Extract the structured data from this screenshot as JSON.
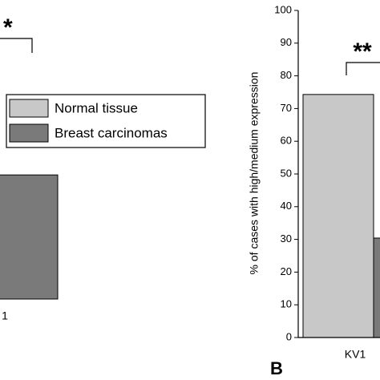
{
  "chart_data": [
    {
      "type": "bar",
      "annotations": [
        "*"
      ],
      "categories": [
        "1"
      ],
      "series": [
        {
          "name": "Normal tissue",
          "color": "#c8c8c8",
          "values": [
            null
          ]
        },
        {
          "name": "Breast carcinomas",
          "color": "#7a7a7a",
          "values": [
            43
          ]
        }
      ],
      "ylim": [
        0,
        100
      ]
    },
    {
      "type": "bar",
      "ylabel": "% of cases with high/medium expression",
      "annotations": [
        "**",
        "B"
      ],
      "categories": [
        "KV1"
      ],
      "series": [
        {
          "name": "Normal tissue",
          "color": "#c8c8c8",
          "values": [
            74.3
          ]
        },
        {
          "name": "Breast carcinomas",
          "color": "#7a7a7a",
          "values": [
            30.4
          ]
        }
      ],
      "ylim": [
        0,
        100
      ],
      "yticks": [
        0,
        10,
        20,
        30,
        40,
        50,
        60,
        70,
        80,
        90,
        100
      ]
    }
  ]
}
